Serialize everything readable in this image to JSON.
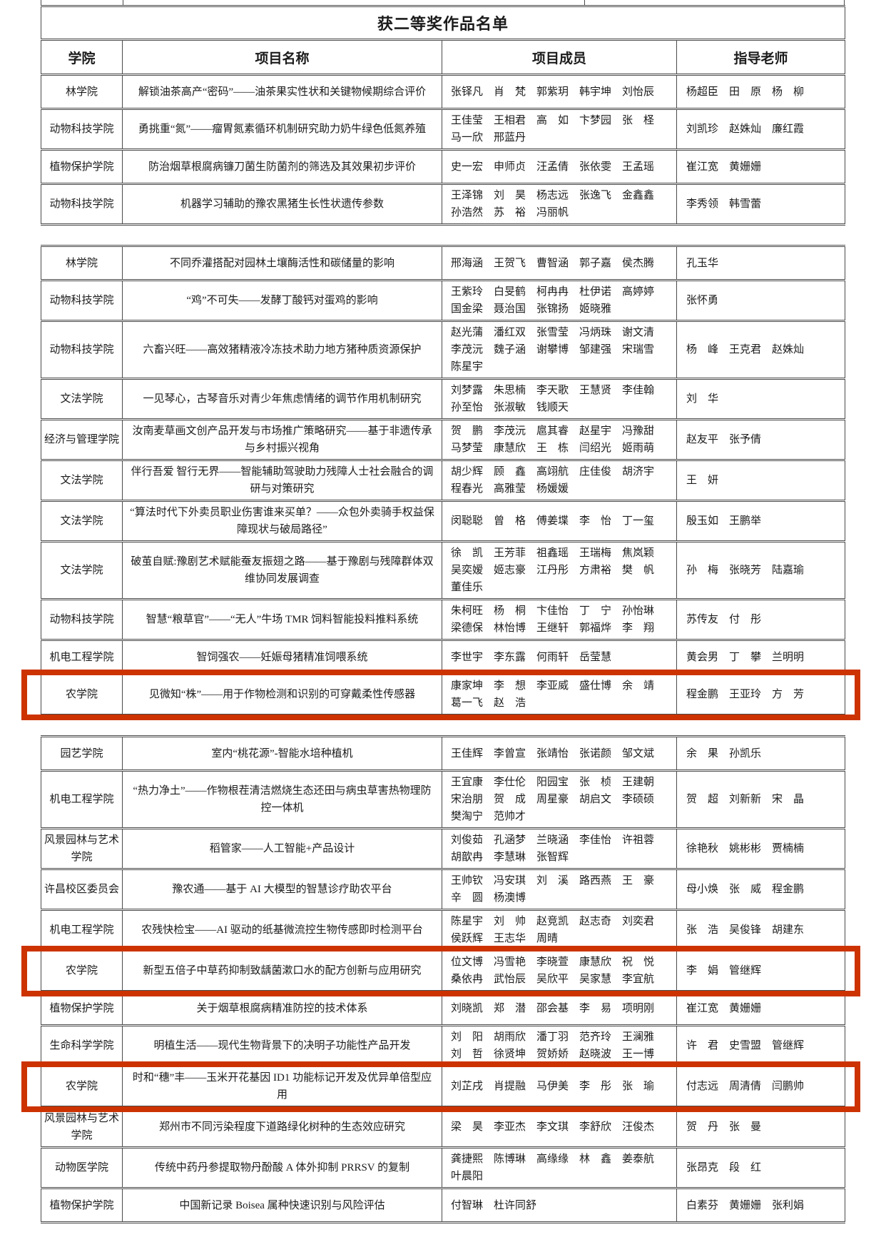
{
  "title": "获二等奖作品名单",
  "columns": [
    "学院",
    "项目名称",
    "项目成员",
    "指导老师"
  ],
  "highlight_color": "#cc3300",
  "border_color": "#4a4a4a",
  "sections": [
    {
      "rows": [
        {
          "college": "林学院",
          "project": "解锁油茶高产“密码”——油茶果实性状和关键物候期综合评价",
          "members": [
            "张铎凡　肖　梵　郭紫玥　韩宇坤　刘怡辰"
          ],
          "advisors": "杨超臣　田　原　杨　柳",
          "highlighted": false
        },
        {
          "college": "动物科技学院",
          "project": "勇挑重“氮”——瘤胃氮素循环机制研究助力奶牛绿色低氮养殖",
          "members": [
            "王佳莹　王相君　高　如　卞梦园　张　柽",
            "马一欣　邢蓝丹"
          ],
          "advisors": "刘凯珍　赵姝灿　廉红霞",
          "highlighted": false
        },
        {
          "college": "植物保护学院",
          "project": "防治烟草根腐病镰刀菌生防菌剂的筛选及其效果初步评价",
          "members": [
            "史一宏　申师贞　汪孟倩　张依雯　王孟瑶"
          ],
          "advisors": "崔江宽　黄姗姗",
          "highlighted": false
        },
        {
          "college": "动物科技学院",
          "project": "机器学习辅助的豫农黑猪生长性状遗传参数",
          "members": [
            "王泽锦　刘　昊　杨志远　张逸飞　金鑫鑫",
            "孙浩然　苏　裕　冯丽帆"
          ],
          "advisors": "李秀领　韩雪蕾",
          "highlighted": false
        }
      ]
    },
    {
      "rows": [
        {
          "college": "林学院",
          "project": "不同乔灌搭配对园林土壤酶活性和碳储量的影响",
          "members": [
            "邢海涵　王贺飞　曹智涵　郭子嘉　侯杰腾"
          ],
          "advisors": "孔玉华",
          "highlighted": false
        },
        {
          "college": "动物科技学院",
          "project": "“鸡”不可失——发酵丁酸钙对蛋鸡的影响",
          "members": [
            "王紫玲　白旻鹤　柯冉冉　杜伊诺　高婷婷",
            "国金梁　聂治国　张锦扬　姬晓雅"
          ],
          "advisors": "张怀勇",
          "highlighted": false
        },
        {
          "college": "动物科技学院",
          "project": "六畜兴旺——高效猪精液冷冻技术助力地方猪种质资源保护",
          "members": [
            "赵光蒲　潘红双　张雪莹　冯炳珠　谢文清",
            "李茂沅　魏子涵　谢攀博　邹建强　宋瑞雪",
            "陈星宇"
          ],
          "advisors": "杨　峰　王克君　赵姝灿",
          "highlighted": false
        },
        {
          "college": "文法学院",
          "project": "一见琴心，古琴音乐对青少年焦虑情绪的调节作用机制研究",
          "members": [
            "刘梦露　朱思楠　李天歌　王慧贤　李佳翰",
            "孙至怡　张淑敏　钱顺天"
          ],
          "advisors": "刘　华",
          "highlighted": false
        },
        {
          "college": "经济与管理学院",
          "project": "汝南麦草画文创产品开发与市场推广策略研究——基于非遗传承与乡村振兴视角",
          "members": [
            "贺　鹏　李茂沅　扈其睿　赵星宇　冯豫甜",
            "马梦莹　康慧欣　王　栋　闫绍光　姬雨萌"
          ],
          "advisors": "赵友平　张予倩",
          "highlighted": false
        },
        {
          "college": "文法学院",
          "project": "伴行吾爱 智行无界——智能辅助驾驶助力残障人士社会融合的调研与对策研究",
          "members": [
            "胡少辉　顾　鑫　高翊航　庄佳俊　胡济宇",
            "程春光　高雅莹　杨媛媛"
          ],
          "advisors": "王　妍",
          "highlighted": false
        },
        {
          "college": "文法学院",
          "project": "“算法时代下外卖员职业伤害谁来买单？——众包外卖骑手权益保障现状与破局路径”",
          "members": [
            "闵聪聪　曾　格　傅姜堞　李　怡　丁一玺"
          ],
          "advisors": "殷玉如　王鹏举",
          "highlighted": false
        },
        {
          "college": "文法学院",
          "project": "破茧自赋:豫剧艺术赋能蚕友振翅之路——基于豫剧与残障群体双维协同发展调查",
          "members": [
            "徐　凯　王芳菲　祖鑫瑶　王瑞梅　焦岚颖",
            "吴奕嫒　姬志豪　江丹彤　方肃裕　樊　帆",
            "董佳乐"
          ],
          "advisors": "孙　梅　张晓芳　陆嘉瑜",
          "highlighted": false
        },
        {
          "college": "动物科技学院",
          "project": "智慧“粮草官”——“无人”牛场 TMR 饲料智能投料推料系统",
          "members": [
            "朱柯旺　杨　桐　卞佳怡　丁　宁　孙怡琳",
            "梁德保　林怡博　王继轩　郭福烨　李　翔"
          ],
          "advisors": "苏传友　付　彤",
          "highlighted": false
        },
        {
          "college": "机电工程学院",
          "project": "智饲强农——妊娠母猪精准饲喂系统",
          "members": [
            "李世宇　李东露　何雨轩　岳莹慧"
          ],
          "advisors": "黄会男　丁　攀　兰明明",
          "highlighted": false
        },
        {
          "college": "农学院",
          "project": "见微知“株”——用于作物检测和识别的可穿戴柔性传感器",
          "members": [
            "康家坤　李　想　李亚威　盛仕博　余　靖",
            "葛一飞　赵　浩"
          ],
          "advisors": "程金鹏　王亚玲　方　芳",
          "highlighted": true
        }
      ]
    },
    {
      "rows": [
        {
          "college": "园艺学院",
          "project": "室内“桃花源”-智能水培种植机",
          "members": [
            "王佳辉　李曾宣　张靖怡　张诺颜　邹文斌"
          ],
          "advisors": "余　果　孙凯乐",
          "highlighted": false
        },
        {
          "college": "机电工程学院",
          "project": "“热力净土”——作物根茬清洁燃烧生态还田与病虫草害热物理防控一体机",
          "members": [
            "王宜康　李仕伦　阳园宝　张　桢　王建朝",
            "宋治朋　贺　成　周星豪　胡启文　李硕硕",
            "樊淘宁　范帅才"
          ],
          "advisors": "贺　超　刘新新　宋　晶",
          "highlighted": false
        },
        {
          "college": "风景园林与艺术学院",
          "project": "稻管家——人工智能+产品设计",
          "members": [
            "刘俊茹　孔涵梦　兰晓涵　李佳怡　许祖蓉",
            "胡歆冉　李慧琳　张智辉"
          ],
          "advisors": "徐艳秋　姚彬彬　贾楠楠",
          "highlighted": false
        },
        {
          "college": "许昌校区委员会",
          "project": "豫农通——基于 AI 大模型的智慧诊疗助农平台",
          "members": [
            "王帅钦　冯安琪　刘　溪　路西燕　王　豪",
            "辛　圆　杨澳博"
          ],
          "advisors": "母小焕　张　威　程金鹏",
          "highlighted": false
        },
        {
          "college": "机电工程学院",
          "project": "农残快检宝——AI 驱动的纸基微流控生物传感即时检测平台",
          "members": [
            "陈星宇　刘　帅　赵竞凯　赵志奇　刘奕君",
            "侯跃辉　王志华　周晴"
          ],
          "advisors": "张　浩　吴俊锋　胡建东",
          "highlighted": false
        },
        {
          "college": "农学院",
          "project": "新型五倍子中草药抑制致龋菌漱口水的配方创新与应用研究",
          "members": [
            "位文博　冯雪艳　李晓萱　康慧欣　祝　悦",
            "桑依冉　武怡辰　吴欣平　吴家慧　李宜航"
          ],
          "advisors": "李　娟　管继辉",
          "highlighted": true
        },
        {
          "college": "植物保护学院",
          "project": "关于烟草根腐病精准防控的技术体系",
          "members": [
            "刘晓凯　郑　潜　邵会基　李　易　项明刚"
          ],
          "advisors": "崔江宽　黄姗姗",
          "highlighted": false
        },
        {
          "college": "生命科学学院",
          "project": "明植生活——现代生物背景下的决明子功能性产品开发",
          "members": [
            "刘　阳　胡雨欣　潘丁羽　范齐玲　王澜雅",
            "刘　哲　徐贤坤　贺娇娇　赵晓波　王一博"
          ],
          "advisors": "许　君　史雪盟　管继辉",
          "highlighted": false
        },
        {
          "college": "农学院",
          "project": "时和“穗”丰——玉米开花基因 ID1 功能标记开发及优异单倍型应用",
          "members": [
            "刘芷戌　肖提融　马伊美　李　彤　张　瑜"
          ],
          "advisors": "付志远　周清倩　闫鹏帅",
          "highlighted": true
        },
        {
          "college": "风景园林与艺术学院",
          "project": "郑州市不同污染程度下道路绿化树种的生态效应研究",
          "members": [
            "梁　昊　李亚杰　李文琪　李舒欣　汪俊杰"
          ],
          "advisors": "贺　丹　张　曼",
          "highlighted": false
        },
        {
          "college": "动物医学院",
          "project": "传统中药丹参提取物丹酚酸 A 体外抑制 PRRSV 的复制",
          "members": [
            "龚捷熙　陈博琳　高缘缘　林　鑫　姜泰航",
            "叶晨阳"
          ],
          "advisors": "张昂克　段　红",
          "highlighted": false
        },
        {
          "college": "植物保护学院",
          "project": "中国新记录 Boisea 属种快速识别与风险评估",
          "members": [
            "付智琳　杜许同舒"
          ],
          "advisors": "白素芬　黄姗姗　张利娟",
          "highlighted": false
        }
      ]
    }
  ]
}
